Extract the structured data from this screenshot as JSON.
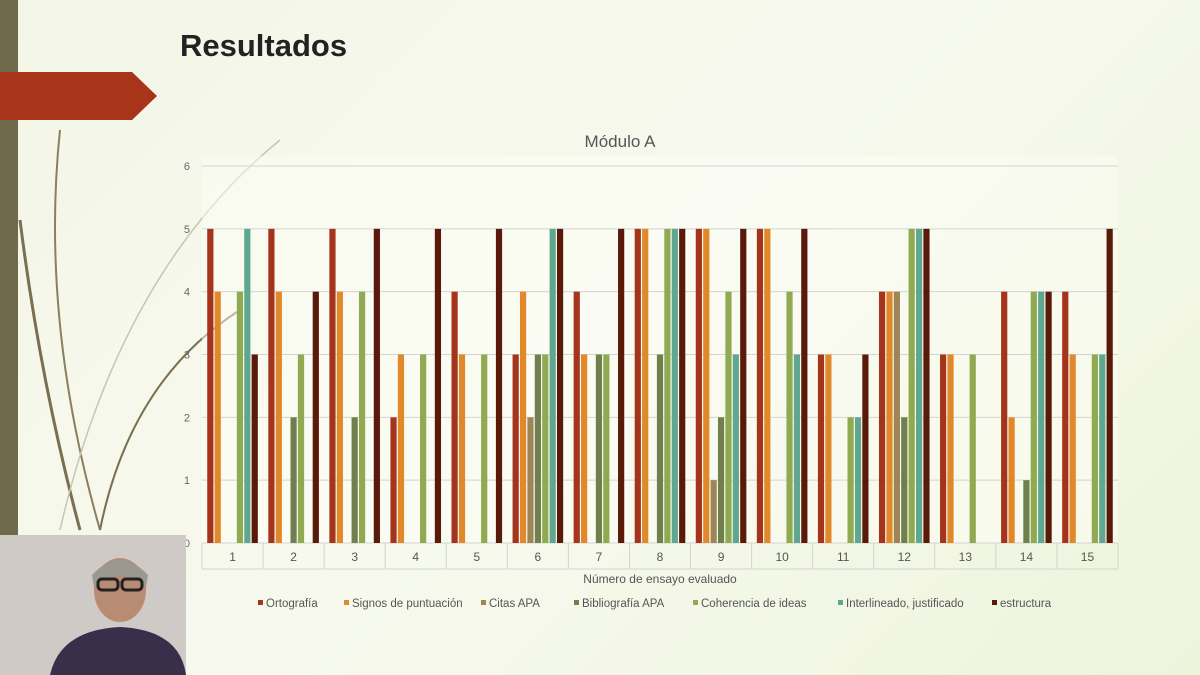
{
  "slide": {
    "title": "Resultados"
  },
  "chart_data": {
    "type": "bar",
    "title": "Módulo A",
    "xlabel": "Número de ensayo evaluado",
    "ylabel": "",
    "ylim": [
      0,
      6
    ],
    "yticks": [
      0,
      1,
      2,
      3,
      4,
      5,
      6
    ],
    "grid": true,
    "legend_placement": "bottom",
    "categories": [
      "1",
      "2",
      "3",
      "4",
      "5",
      "6",
      "7",
      "8",
      "9",
      "10",
      "11",
      "12",
      "13",
      "14",
      "15"
    ],
    "series": [
      {
        "name": "Ortografía",
        "color": "#a5341c",
        "values": [
          5,
          5,
          5,
          2,
          4,
          3,
          4,
          5,
          5,
          5,
          3,
          4,
          3,
          4,
          4
        ]
      },
      {
        "name": "Signos de puntuación",
        "color": "#e0882a",
        "values": [
          4,
          4,
          4,
          3,
          3,
          4,
          3,
          5,
          5,
          5,
          3,
          4,
          3,
          2,
          3
        ]
      },
      {
        "name": "Citas APA",
        "color": "#9e8555",
        "values": [
          0,
          0,
          0,
          0,
          0,
          2,
          0,
          0,
          1,
          0,
          0,
          4,
          0,
          0,
          0
        ]
      },
      {
        "name": "Bibliografía APA",
        "color": "#6f7f4e",
        "values": [
          0,
          2,
          2,
          0,
          0,
          3,
          3,
          3,
          2,
          0,
          0,
          2,
          0,
          1,
          0
        ]
      },
      {
        "name": "Coherencia de ideas",
        "color": "#8faa50",
        "values": [
          4,
          3,
          4,
          3,
          3,
          3,
          3,
          5,
          4,
          4,
          2,
          5,
          3,
          4,
          3
        ]
      },
      {
        "name": "Interlineado, justificado",
        "color": "#5fa88f",
        "values": [
          5,
          0,
          0,
          0,
          0,
          5,
          0,
          5,
          3,
          3,
          2,
          5,
          0,
          4,
          3
        ]
      },
      {
        "name": "estructura",
        "color": "#5a1a0a",
        "values": [
          3,
          4,
          5,
          5,
          5,
          5,
          5,
          5,
          5,
          5,
          3,
          5,
          0,
          4,
          5
        ]
      }
    ]
  }
}
